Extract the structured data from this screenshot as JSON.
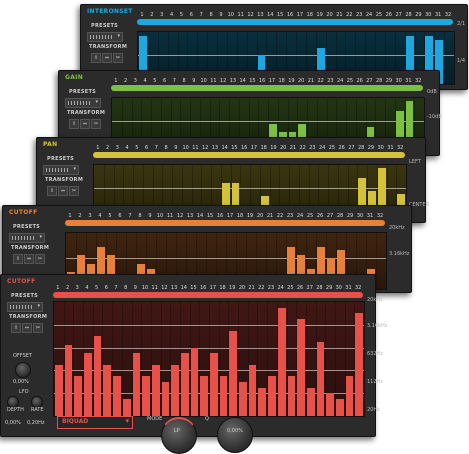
{
  "panels": [
    {
      "id": "interonset",
      "title": "INTERONSET",
      "accent": "#1fa7df",
      "title_color": "#1fa7df",
      "presets_label": "PRESETS",
      "transform_label": "TRANSFORM",
      "step_count": 32,
      "values": [
        0.92,
        0.25,
        0.25,
        0.15,
        0.0,
        0.15,
        0.1,
        0.0,
        0.1,
        0.0,
        0.0,
        0.0,
        0.55,
        0.25,
        0.0,
        0.0,
        0.2,
        0.0,
        0.7,
        0.15,
        0.0,
        0.0,
        0.0,
        0.0,
        0.1,
        0.0,
        0.0,
        0.92,
        0.0,
        0.92,
        0.85,
        0.0
      ],
      "y_labels": [
        "2/1",
        "1/4"
      ]
    },
    {
      "id": "gain",
      "title": "GAIN",
      "accent": "#7cc043",
      "title_color": "#7cc043",
      "presets_label": "PRESETS",
      "transform_label": "TRANSFORM",
      "step_count": 32,
      "values": [
        0.0,
        0.0,
        0.0,
        0.0,
        0.0,
        0.08,
        0.0,
        0.0,
        0.0,
        0.0,
        0.0,
        0.0,
        0.0,
        0.0,
        0.0,
        0.0,
        0.5,
        0.35,
        0.35,
        0.5,
        0.0,
        0.0,
        0.0,
        0.0,
        0.0,
        0.0,
        0.45,
        0.0,
        0.0,
        0.75,
        0.95,
        0.0
      ],
      "y_labels": [
        "0dB",
        "-10dB"
      ]
    },
    {
      "id": "pan",
      "title": "PAN",
      "accent": "#d3c23a",
      "title_color": "#d3c23a",
      "presets_label": "PRESETS",
      "transform_label": "TRANSFORM",
      "step_count": 32,
      "values": [
        0.0,
        0.0,
        0.0,
        0.0,
        0.0,
        0.0,
        0.0,
        0.0,
        0.0,
        0.0,
        0.0,
        0.0,
        0.0,
        0.65,
        0.65,
        0.0,
        0.0,
        0.4,
        0.0,
        0.0,
        0.0,
        0.0,
        0.0,
        0.0,
        0.0,
        0.0,
        0.0,
        0.75,
        0.5,
        0.95,
        0.0,
        0.45
      ],
      "y_labels": [
        "LEFT",
        "CENTER"
      ]
    },
    {
      "id": "cutoff-back",
      "title": "CUTOFF",
      "accent": "#e6803a",
      "title_color": "#e6803a",
      "presets_label": "PRESETS",
      "transform_label": "TRANSFORM",
      "step_count": 32,
      "values": [
        0.3,
        0.6,
        0.45,
        0.75,
        0.6,
        0.2,
        0.0,
        0.45,
        0.35,
        0.0,
        0.0,
        0.0,
        0.1,
        0.0,
        0.1,
        0.0,
        0.25,
        0.0,
        0.2,
        0.0,
        0.0,
        0.0,
        0.75,
        0.6,
        0.35,
        0.75,
        0.55,
        0.7,
        0.0,
        0.0,
        0.35,
        0.0
      ],
      "y_labels": [
        "20kHz",
        "3.16kHz"
      ]
    },
    {
      "id": "cutoff-front",
      "title": "CUTOFF",
      "accent": "#e8514a",
      "title_color": "#e8514a",
      "presets_label": "PRESETS",
      "transform_label": "TRANSFORM",
      "offset_label": "OFFSET",
      "offset_value": "0,00%",
      "lfo_label": "LFO",
      "depth_label": "DEPTH",
      "rate_label": "RATE",
      "depth_value": "0,00%",
      "rate_value": "0,20Hz",
      "filter_type": "BIQUAD",
      "mode_label": "MODE",
      "mode_value": "LP",
      "q_label": "Q",
      "q_value": "0,00%",
      "step_count": 32,
      "values": [
        0.45,
        0.62,
        0.35,
        0.55,
        0.7,
        0.45,
        0.35,
        0.15,
        0.55,
        0.35,
        0.45,
        0.3,
        0.45,
        0.55,
        0.6,
        0.35,
        0.55,
        0.35,
        0.75,
        0.3,
        0.45,
        0.25,
        0.35,
        0.95,
        0.35,
        0.85,
        0.25,
        0.65,
        0.2,
        0.15,
        0.35,
        0.9
      ],
      "y_labels": [
        "20kHz",
        "3.16kHz",
        "632Hz",
        "112Hz",
        "20Hz"
      ]
    }
  ]
}
